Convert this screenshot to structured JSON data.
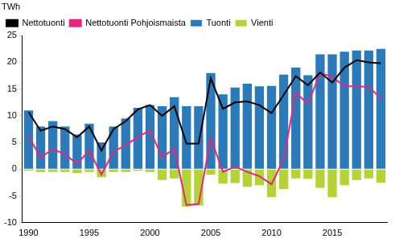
{
  "chart_data": {
    "type": "bar",
    "ylabel": "TWh",
    "categories": [
      "1990",
      null,
      null,
      null,
      null,
      "1995",
      null,
      null,
      null,
      null,
      "2000",
      null,
      null,
      null,
      null,
      "2005",
      null,
      null,
      null,
      null,
      "2010",
      null,
      null,
      null,
      null,
      "2015",
      null,
      null,
      null,
      null
    ],
    "series": [
      {
        "name": "Tuonti",
        "type": "bar",
        "color": "#2b7bba",
        "values": [
          11.0,
          8.0,
          9.0,
          8.0,
          6.5,
          8.5,
          5.0,
          8.0,
          9.5,
          11.5,
          12.0,
          11.8,
          13.5,
          11.8,
          11.8,
          18.0,
          14.0,
          15.3,
          16.0,
          15.5,
          15.6,
          17.7,
          19.0,
          17.6,
          21.5,
          21.5,
          22.0,
          22.2,
          22.2,
          22.5
        ]
      },
      {
        "name": "Vienti",
        "type": "bar",
        "color": "#b5d334",
        "values": [
          -0.3,
          -0.5,
          -0.5,
          -0.5,
          -0.7,
          -0.5,
          -1.5,
          -0.5,
          -0.5,
          -0.3,
          -0.5,
          -2.0,
          -1.7,
          -7.0,
          -6.8,
          -1.0,
          -2.7,
          -2.6,
          -3.3,
          -3.0,
          -5.2,
          -3.7,
          -1.7,
          -1.8,
          -3.5,
          -5.2,
          -3.0,
          -2.0,
          -1.7,
          -2.5
        ]
      },
      {
        "name": "Nettotuonti",
        "type": "line",
        "color": "#000000",
        "marker": "none",
        "values": [
          10.7,
          7.2,
          8.0,
          7.5,
          6.0,
          8.0,
          3.5,
          7.5,
          9.0,
          11.2,
          12.0,
          10.0,
          11.8,
          4.8,
          4.8,
          17.0,
          11.3,
          12.5,
          12.7,
          12.0,
          10.5,
          13.9,
          17.4,
          15.7,
          18.1,
          16.2,
          19.0,
          20.4,
          20.0,
          19.8
        ]
      },
      {
        "name": "Nettotuonti Pohjoismaista",
        "type": "line",
        "color": "#e4277f",
        "marker": "none",
        "values": [
          6.2,
          2.2,
          3.8,
          2.8,
          1.0,
          3.5,
          -1.0,
          3.3,
          4.5,
          6.0,
          7.3,
          2.2,
          3.9,
          -6.7,
          -6.5,
          5.8,
          -0.5,
          0.5,
          -0.5,
          -1.3,
          -2.8,
          1.9,
          14.3,
          12.2,
          18.0,
          17.3,
          15.5,
          15.5,
          15.4,
          13.3
        ]
      }
    ],
    "stacked": true,
    "ylim": [
      -10,
      25
    ],
    "yticks": [
      -10,
      -5,
      0,
      5,
      10,
      15,
      20,
      25
    ],
    "grid": false,
    "legend": "top-left"
  }
}
